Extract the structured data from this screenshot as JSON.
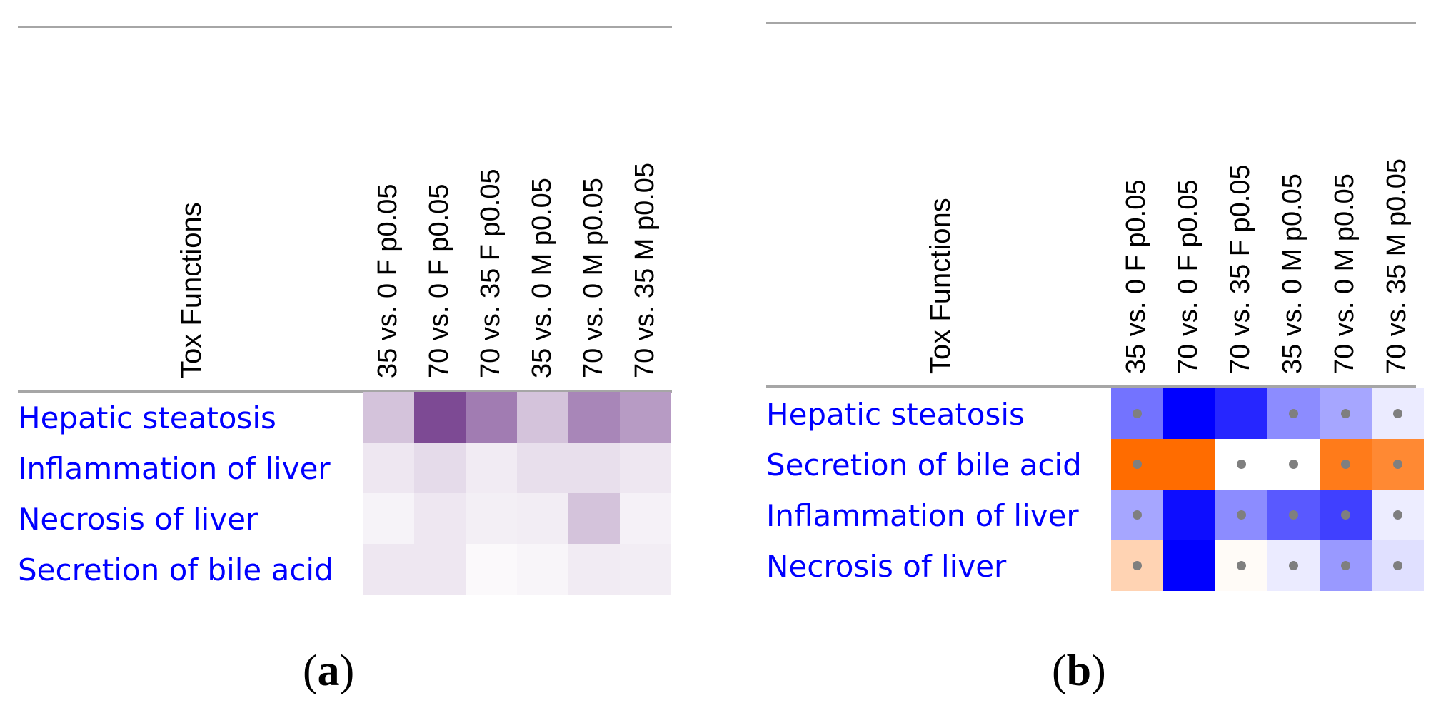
{
  "chart_data": [
    {
      "type": "heatmap",
      "panel": "a",
      "row_header": "Tox Functions",
      "columns": [
        "35 vs. 0 F p0.05",
        "70 vs. 0 F p0.05",
        "70 vs. 35 F p0.05",
        "35 vs. 0 M p0.05",
        "70 vs. 0 M p0.05",
        "70 vs. 35 M p0.05"
      ],
      "rows": [
        "Hepatic steatosis",
        "Inflammation of liver",
        "Necrosis of liver",
        "Secretion of bile acid"
      ],
      "values": [
        [
          0.3,
          0.9,
          0.65,
          0.3,
          0.6,
          0.5
        ],
        [
          0.12,
          0.18,
          0.1,
          0.16,
          0.16,
          0.12
        ],
        [
          0.06,
          0.12,
          0.08,
          0.09,
          0.3,
          0.07
        ],
        [
          0.12,
          0.12,
          0.03,
          0.05,
          0.1,
          0.09
        ]
      ],
      "dots": [],
      "color_scale": "purple (higher = darker)",
      "caption": "a"
    },
    {
      "type": "heatmap",
      "panel": "b",
      "row_header": "Tox Functions",
      "columns": [
        "35 vs. 0 F p0.05",
        "70 vs. 0 F p0.05",
        "70 vs. 35 F p0.05",
        "35 vs. 0 M p0.05",
        "70 vs. 0 M p0.05",
        "70 vs. 35 M p0.05"
      ],
      "rows": [
        "Hepatic steatosis",
        "Secretion of bile acid",
        "Inflammation of liver",
        "Necrosis of liver"
      ],
      "values": [
        [
          -0.55,
          -1.0,
          -0.85,
          -0.45,
          -0.35,
          -0.08
        ],
        [
          1.0,
          1.0,
          0.0,
          0.0,
          0.9,
          0.8
        ],
        [
          -0.35,
          -0.95,
          -0.45,
          -0.65,
          -0.75,
          -0.07
        ],
        [
          0.3,
          -1.0,
          0.03,
          -0.08,
          -0.4,
          -0.12
        ]
      ],
      "dots": [
        [
          true,
          false,
          false,
          true,
          true,
          true
        ],
        [
          true,
          false,
          true,
          true,
          true,
          true
        ],
        [
          true,
          false,
          true,
          true,
          true,
          true
        ],
        [
          true,
          false,
          true,
          true,
          true,
          true
        ]
      ],
      "color_scale": "blue (negative) to orange (positive), white = 0",
      "caption": "b"
    }
  ]
}
